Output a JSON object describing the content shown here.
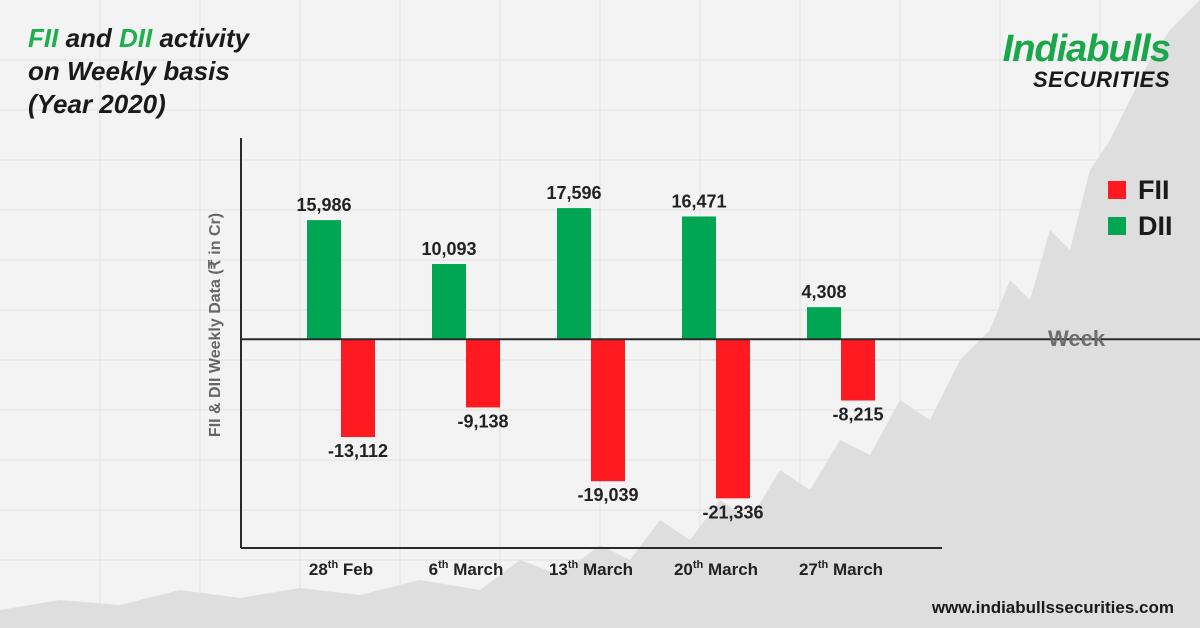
{
  "title": {
    "fii": "FII",
    "and": " and ",
    "dii": "DII",
    "rest1": " activity",
    "line2": "on Weekly basis",
    "line3": "(Year 2020)"
  },
  "logo": {
    "line1": "Indiabulls",
    "line2": "SECURITIES"
  },
  "website": "www.indiabullssecurities.com",
  "week_label": "Week",
  "colors": {
    "fii": "#ff1a22",
    "dii": "#00a651",
    "axis": "#2a2a2a",
    "accent_green": "#1db04b"
  },
  "chart_data": {
    "type": "bar",
    "ylabel": "FII & DII Weekly Data (₹ in Cr)",
    "xlabel": "Week",
    "categories": [
      {
        "day": "28",
        "sup": "th",
        "month": "Feb"
      },
      {
        "day": "6",
        "sup": "th",
        "month": "March"
      },
      {
        "day": "13",
        "sup": "th",
        "month": "March"
      },
      {
        "day": "20",
        "sup": "th",
        "month": "March"
      },
      {
        "day": "27",
        "sup": "th",
        "month": "March"
      }
    ],
    "series": [
      {
        "name": "DII",
        "values": [
          15986,
          10093,
          17596,
          16471,
          4308
        ],
        "labels": [
          "15,986",
          "10,093",
          "17,596",
          "16,471",
          "4,308"
        ]
      },
      {
        "name": "FII",
        "values": [
          -13112,
          -9138,
          -19039,
          -21336,
          -8215
        ],
        "labels": [
          "-13,112",
          "-9,138",
          "-19,039",
          "-21,336",
          "-8,215"
        ]
      }
    ],
    "ylim": [
      -28000,
      27000
    ],
    "legend": {
      "position": "right",
      "entries": [
        "FII",
        "DII"
      ]
    },
    "grid": false
  }
}
